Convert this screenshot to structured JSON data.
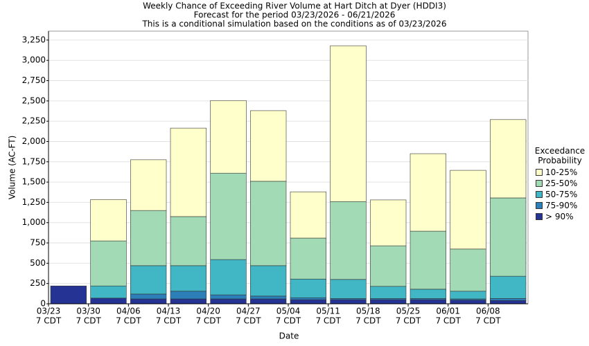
{
  "chart_data": {
    "type": "stacked_bar",
    "title": "Weekly Chance of Exceeding River Volume at Hart Ditch at Dyer (HDDI3)",
    "subtitle": "Forecast for the period 03/23/2026 - 06/21/2026",
    "note": "This is a conditional simulation based on the conditions as of 03/23/2026",
    "xlabel": "Date",
    "ylabel": "Volume (AC-FT)",
    "categories": [
      "03/23",
      "03/30",
      "04/06",
      "04/13",
      "04/20",
      "04/27",
      "05/04",
      "05/11",
      "05/18",
      "05/25",
      "06/01",
      "06/08"
    ],
    "category_suffix": "7 CDT",
    "legend_title": "Exceedance Probability",
    "series": [
      {
        "name": "> 90%",
        "color": "#253494",
        "values": [
          220,
          70,
          60,
          60,
          60,
          60,
          50,
          50,
          50,
          50,
          45,
          40
        ]
      },
      {
        "name": "75-90%",
        "color": "#2c7fb8",
        "values": [
          0,
          0,
          60,
          95,
          50,
          35,
          25,
          15,
          15,
          15,
          15,
          25
        ]
      },
      {
        "name": "50-75%",
        "color": "#41b6c4",
        "values": [
          0,
          150,
          350,
          315,
          435,
          375,
          230,
          235,
          150,
          115,
          95,
          275
        ]
      },
      {
        "name": "25-50%",
        "color": "#a1dab4",
        "values": [
          0,
          555,
          680,
          605,
          1065,
          1040,
          505,
          960,
          500,
          715,
          520,
          965
        ]
      },
      {
        "name": "10-25%",
        "color": "#ffffcc",
        "values": [
          0,
          510,
          625,
          1090,
          895,
          870,
          570,
          1920,
          565,
          955,
          970,
          965
        ]
      }
    ],
    "ylim": [
      0,
      3360
    ],
    "yticks": [
      0,
      250,
      500,
      750,
      {
        "value": 1000,
        "label": "1,000"
      },
      {
        "value": 1250,
        "label": "1,250"
      },
      {
        "value": 1500,
        "label": "1,500"
      },
      {
        "value": 1750,
        "label": "1,750"
      },
      {
        "value": 2000,
        "label": "2,000"
      },
      {
        "value": 2250,
        "label": "2,250"
      },
      {
        "value": 2500,
        "label": "2,500"
      },
      {
        "value": 2750,
        "label": "2,750"
      },
      {
        "value": 3000,
        "label": "3,000"
      },
      {
        "value": 3250,
        "label": "3,250"
      }
    ],
    "grid": true
  }
}
